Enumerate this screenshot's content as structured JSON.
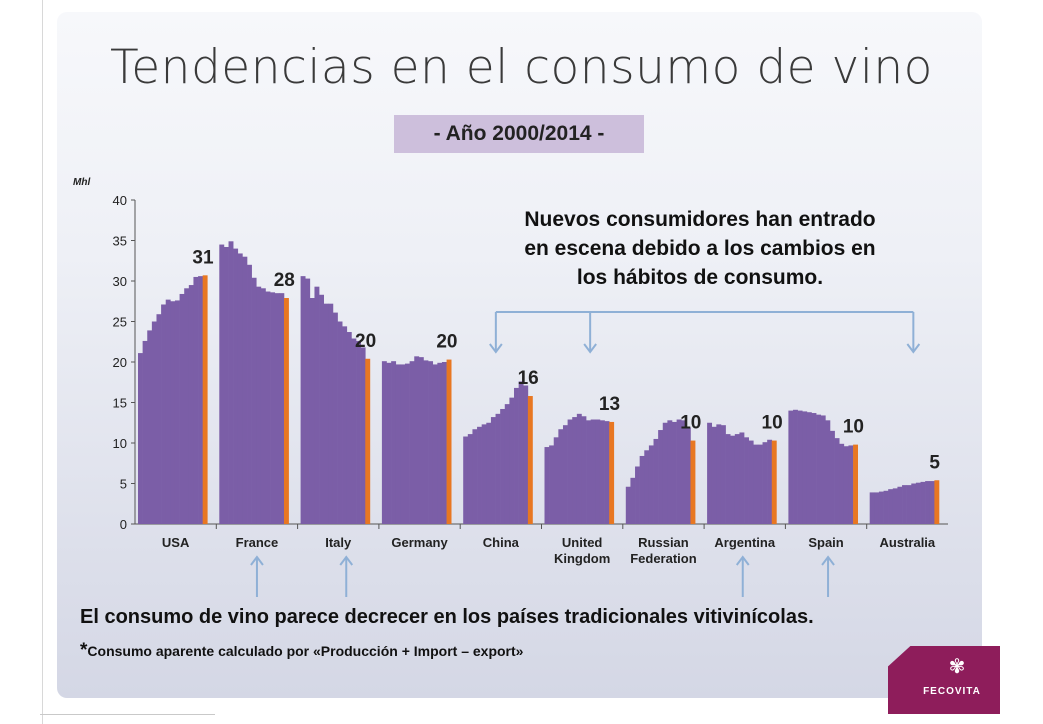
{
  "slide": {
    "title": "Tendencias en el consumo de vino",
    "subtitle": "- Año 2000/2014 -",
    "callout_top": [
      "Nuevos consumidores han entrado",
      "en escena debido a los cambios en",
      "los hábitos de consumo."
    ],
    "callout_bottom": "El consumo de vino parece decrecer en los países tradicionales vitivinícolas.",
    "footnote_star": "*",
    "footnote": "Consumo aparente calculado por «Producción + Import – export»",
    "logo_text": "FECOVITA",
    "logo_icon": "flower-icon"
  },
  "colors": {
    "bar": "#7b5ea7",
    "highlight": "#e87722",
    "arrow": "#8fb0d6",
    "logo": "#8e1d5b",
    "subtitle_bg": "#cdbfdc"
  },
  "chart_data": {
    "type": "bar",
    "ylabel": "Mhl",
    "ylim": [
      0,
      40
    ],
    "yticks": [
      0,
      5,
      10,
      15,
      20,
      25,
      30,
      35,
      40
    ],
    "years": "2000-2014",
    "groups": [
      {
        "name": "USA",
        "label_lines": [
          "USA"
        ],
        "end_label": "31",
        "values": [
          21.1,
          22.6,
          23.9,
          25.0,
          25.9,
          27.1,
          27.7,
          27.5,
          27.6,
          28.4,
          29.1,
          29.5,
          30.5,
          30.6,
          30.7
        ]
      },
      {
        "name": "France",
        "label_lines": [
          "France"
        ],
        "end_label": "28",
        "values": [
          34.5,
          34.2,
          34.9,
          34.0,
          33.4,
          33.0,
          32.0,
          30.4,
          29.3,
          29.1,
          28.7,
          28.6,
          28.5,
          28.5,
          27.9
        ]
      },
      {
        "name": "Italy",
        "label_lines": [
          "Italy"
        ],
        "end_label": "20",
        "values": [
          30.6,
          30.3,
          27.9,
          29.3,
          28.3,
          27.2,
          27.2,
          26.1,
          25.0,
          24.4,
          23.7,
          22.9,
          22.6,
          21.8,
          20.4
        ]
      },
      {
        "name": "Germany",
        "label_lines": [
          "Germany"
        ],
        "end_label": "20",
        "values": [
          20.1,
          19.9,
          20.1,
          19.7,
          19.7,
          19.8,
          20.1,
          20.7,
          20.6,
          20.2,
          20.1,
          19.7,
          19.9,
          20.0,
          20.3
        ]
      },
      {
        "name": "China",
        "label_lines": [
          "China"
        ],
        "end_label": "16",
        "values": [
          10.8,
          11.1,
          11.7,
          12.0,
          12.3,
          12.5,
          13.2,
          13.6,
          14.2,
          14.8,
          15.6,
          16.8,
          17.6,
          17.1,
          15.8
        ]
      },
      {
        "name": "United Kingdom",
        "label_lines": [
          "United",
          "Kingdom"
        ],
        "end_label": "13",
        "values": [
          9.5,
          9.7,
          10.7,
          11.7,
          12.2,
          12.9,
          13.2,
          13.6,
          13.3,
          12.8,
          12.9,
          12.9,
          12.8,
          12.7,
          12.6
        ]
      },
      {
        "name": "Russian Federation",
        "label_lines": [
          "Russian",
          "Federation"
        ],
        "end_label": "10",
        "values": [
          4.6,
          5.7,
          7.1,
          8.4,
          9.1,
          9.7,
          10.5,
          11.6,
          12.5,
          12.8,
          12.6,
          12.9,
          12.8,
          11.9,
          10.3
        ]
      },
      {
        "name": "Argentina",
        "label_lines": [
          "Argentina"
        ],
        "end_label": "10",
        "values": [
          12.5,
          12.0,
          12.3,
          12.2,
          11.1,
          10.9,
          11.1,
          11.3,
          10.7,
          10.3,
          9.8,
          9.8,
          10.1,
          10.4,
          10.3
        ]
      },
      {
        "name": "Spain",
        "label_lines": [
          "Spain"
        ],
        "end_label": "10",
        "values": [
          14.0,
          14.1,
          14.0,
          13.9,
          13.8,
          13.7,
          13.5,
          13.4,
          12.8,
          11.5,
          10.6,
          9.9,
          9.6,
          9.7,
          9.8
        ]
      },
      {
        "name": "Australia",
        "label_lines": [
          "Australia"
        ],
        "end_label": "5",
        "values": [
          3.9,
          3.9,
          4.0,
          4.1,
          4.3,
          4.4,
          4.6,
          4.8,
          4.8,
          5.0,
          5.1,
          5.2,
          5.3,
          5.3,
          5.4
        ]
      }
    ]
  }
}
